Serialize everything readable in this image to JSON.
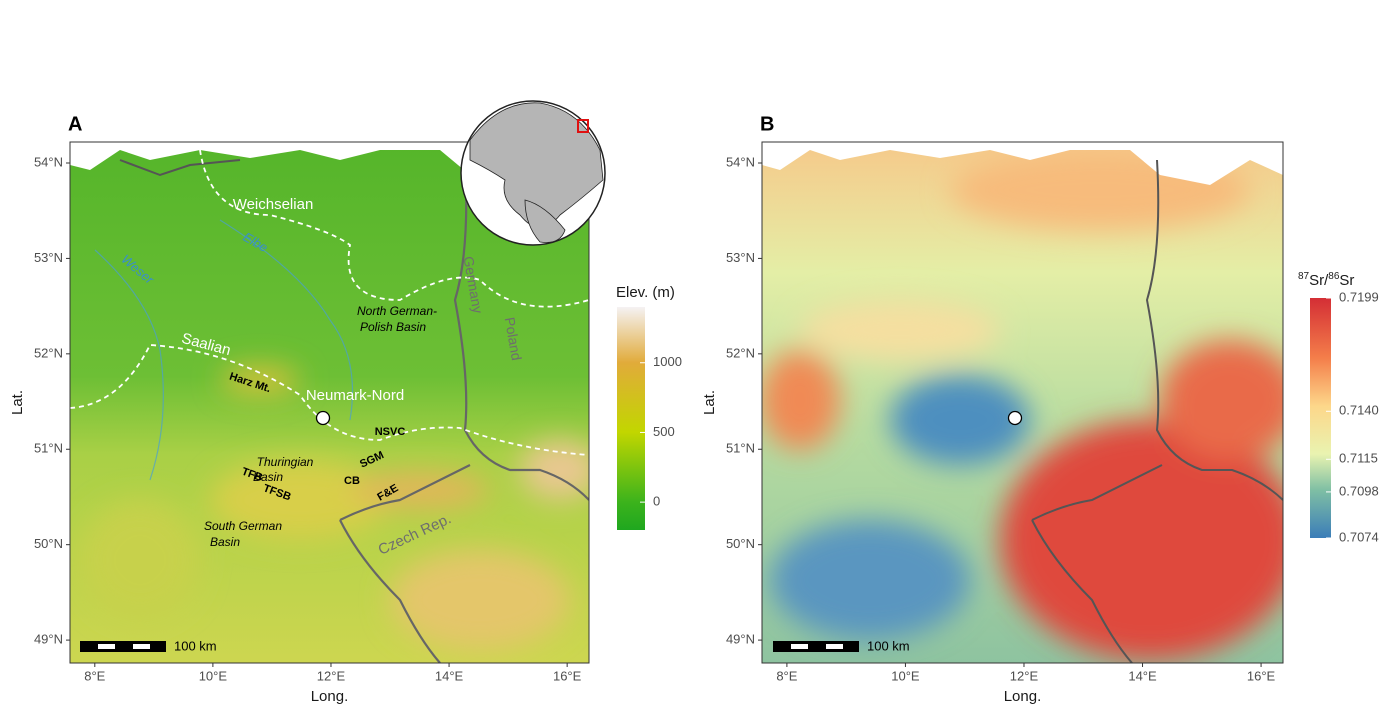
{
  "panel_a": {
    "label": "A",
    "x_axis_title": "Long.",
    "y_axis_title": "Lat.",
    "xlim": [
      7.58,
      16.37
    ],
    "ylim": [
      48.76,
      54.22
    ],
    "xticks": [
      {
        "value": 8,
        "label": "8°E"
      },
      {
        "value": 10,
        "label": "10°E"
      },
      {
        "value": 12,
        "label": "12°E"
      },
      {
        "value": 14,
        "label": "14°E"
      },
      {
        "value": 16,
        "label": "16°E"
      }
    ],
    "yticks": [
      {
        "value": 49,
        "label": "49°N"
      },
      {
        "value": 50,
        "label": "50°N"
      },
      {
        "value": 51,
        "label": "51°N"
      },
      {
        "value": 52,
        "label": "52°N"
      },
      {
        "value": 53,
        "label": "53°N"
      },
      {
        "value": 54,
        "label": "54°N"
      }
    ],
    "annotations": [
      "Weichselian",
      "Elbe",
      "Weser",
      "Saalian",
      "Harz Mt.",
      "Thuringian",
      "Basin",
      "NSVC",
      "SGM",
      "CB",
      "TFB",
      "TFSB",
      "F&E",
      "South German",
      "Basin",
      "North German-",
      "Polish Basin",
      "Germany",
      "Poland",
      "Czech Rep."
    ],
    "site": "Neumark-Nord",
    "scale_bar": "100 km",
    "legend": {
      "title": "Elev. (m)",
      "range": [
        -200,
        1400
      ],
      "ticks": [
        0,
        500,
        1000
      ]
    }
  },
  "panel_b": {
    "label": "B",
    "x_axis_title": "Long.",
    "y_axis_title": "Lat.",
    "xlim": [
      7.58,
      16.37
    ],
    "ylim": [
      48.76,
      54.22
    ],
    "xticks": [
      {
        "value": 8,
        "label": "8°E"
      },
      {
        "value": 10,
        "label": "10°E"
      },
      {
        "value": 12,
        "label": "12°E"
      },
      {
        "value": 14,
        "label": "14°E"
      },
      {
        "value": 16,
        "label": "16°E"
      }
    ],
    "yticks": [
      {
        "value": 49,
        "label": "49°N"
      },
      {
        "value": 50,
        "label": "50°N"
      },
      {
        "value": 51,
        "label": "51°N"
      },
      {
        "value": 52,
        "label": "52°N"
      },
      {
        "value": 53,
        "label": "53°N"
      },
      {
        "value": 54,
        "label": "54°N"
      }
    ],
    "scale_bar": "100 km",
    "legend": {
      "title_parts": [
        "87",
        "Sr/",
        "86",
        "Sr"
      ],
      "range": [
        0.7074,
        0.7199
      ],
      "ticks": [
        0.7074,
        0.7098,
        0.7115,
        {
          "value": 0.714,
          "label": "0.7140"
        },
        0.7199
      ]
    }
  }
}
